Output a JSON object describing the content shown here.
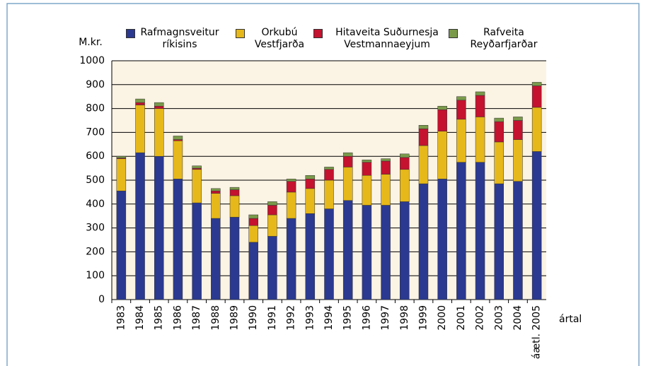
{
  "chart_data": {
    "type": "stacked_bar",
    "y_label": "M.kr.",
    "x_label": "ártal",
    "categories": [
      "1983",
      "1984",
      "1985",
      "1986",
      "1987",
      "1988",
      "1989",
      "1990",
      "1991",
      "1992",
      "1993",
      "1994",
      "1995",
      "1996",
      "1997",
      "1998",
      "1999",
      "2000",
      "2001",
      "2002",
      "2003",
      "2004",
      "áætl. 2005"
    ],
    "series": [
      {
        "name": "Rafmagnsveitur ríkisins",
        "color": "#2b3990",
        "values": [
          455,
          615,
          600,
          505,
          405,
          340,
          345,
          240,
          265,
          340,
          360,
          380,
          415,
          395,
          395,
          410,
          485,
          505,
          575,
          575,
          485,
          495,
          620
        ]
      },
      {
        "name": "Orkubú Vestfjarða",
        "color": "#e6b81a",
        "values": [
          135,
          200,
          200,
          160,
          140,
          105,
          90,
          70,
          90,
          110,
          105,
          120,
          140,
          125,
          130,
          135,
          160,
          200,
          180,
          190,
          175,
          175,
          185
        ]
      },
      {
        "name": "Hitaveita Suðurnesja Vestmannaeyjum",
        "color": "#c4122f",
        "values": [
          3,
          10,
          10,
          5,
          5,
          10,
          25,
          30,
          40,
          45,
          40,
          45,
          45,
          55,
          55,
          50,
          70,
          90,
          80,
          90,
          85,
          80,
          90
        ]
      },
      {
        "name": "Rafveita Reyðarfjarðar",
        "color": "#7a9a4a",
        "values": [
          7,
          15,
          15,
          15,
          10,
          10,
          10,
          15,
          15,
          10,
          15,
          10,
          15,
          10,
          10,
          15,
          15,
          15,
          15,
          15,
          15,
          15,
          15
        ]
      }
    ],
    "ylim": [
      0,
      1000
    ],
    "yticks": [
      0,
      100,
      200,
      300,
      400,
      500,
      600,
      700,
      800,
      900,
      1000
    ],
    "grid": true
  }
}
